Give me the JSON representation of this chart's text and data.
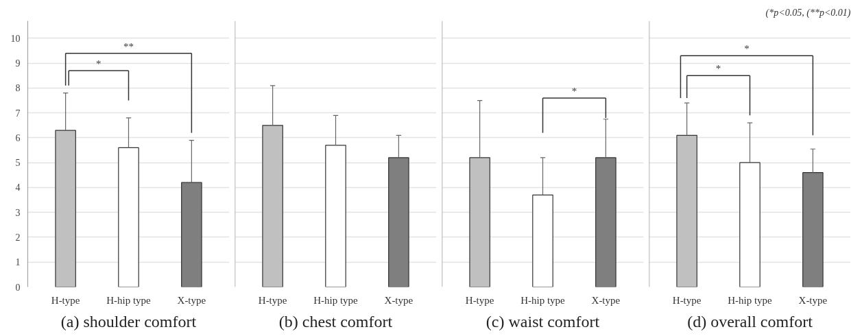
{
  "chart_data": [
    {
      "type": "bar",
      "title": "(a) shoulder comfort",
      "categories": [
        "H-type",
        "H-hip type",
        "X-type"
      ],
      "values": [
        6.3,
        5.6,
        4.2
      ],
      "colors": [
        "#c0c0c0",
        "#ffffff",
        "#7f7f7f"
      ],
      "errors": [
        [
          6.3,
          7.8
        ],
        [
          5.6,
          6.8
        ],
        [
          4.2,
          5.9
        ]
      ],
      "ylim": [
        0,
        10.7
      ],
      "yticks": [
        0,
        1,
        2,
        3,
        4,
        5,
        6,
        7,
        8,
        9,
        10
      ],
      "grid": "y",
      "annotations": [
        "**",
        "*"
      ]
    },
    {
      "type": "bar",
      "title": "(b) chest comfort",
      "categories": [
        "H-type",
        "H-hip type",
        "X-type"
      ],
      "values": [
        6.5,
        5.7,
        5.2
      ],
      "colors": [
        "#c0c0c0",
        "#ffffff",
        "#7f7f7f"
      ],
      "errors": [
        [
          6.5,
          8.1
        ],
        [
          5.7,
          6.9
        ],
        [
          5.2,
          6.1
        ]
      ],
      "ylim": [
        0,
        10.7
      ],
      "yticks": [
        0,
        1,
        2,
        3,
        4,
        5,
        6,
        7,
        8,
        9,
        10
      ],
      "grid": "y",
      "tick_labels": "x"
    },
    {
      "type": "bar",
      "title": "(c) waist comfort",
      "categories": [
        "H-type",
        "H-hip type",
        "X-type"
      ],
      "values": [
        5.2,
        3.7,
        5.2
      ],
      "colors": [
        "#c0c0c0",
        "#ffffff",
        "#7f7f7f"
      ],
      "errors": [
        [
          5.2,
          7.5
        ],
        [
          3.7,
          5.2
        ],
        [
          5.2,
          6.75
        ]
      ],
      "ylim": [
        0,
        10.7
      ],
      "yticks": [
        0,
        1,
        2,
        3,
        4,
        5,
        6,
        7,
        8,
        9,
        10
      ],
      "grid": "y",
      "tick_labels": "x",
      "annotations": [
        "*"
      ]
    },
    {
      "type": "bar",
      "title": "(d) overall comfort",
      "categories": [
        "H-type",
        "H-hip type",
        "X-type"
      ],
      "values": [
        6.1,
        5.0,
        4.6
      ],
      "colors": [
        "#c0c0c0",
        "#ffffff",
        "#7f7f7f"
      ],
      "errors": [
        [
          6.1,
          7.4
        ],
        [
          5.0,
          6.6
        ],
        [
          4.6,
          5.55
        ]
      ],
      "ylim": [
        0,
        10.7
      ],
      "yticks": [
        0,
        1,
        2,
        3,
        4,
        5,
        6,
        7,
        8,
        9,
        10
      ],
      "grid": "y",
      "tick_labels": "x",
      "annotations": [
        "*",
        "*",
        "(*p<0.05, (**p<0.01)"
      ]
    }
  ]
}
